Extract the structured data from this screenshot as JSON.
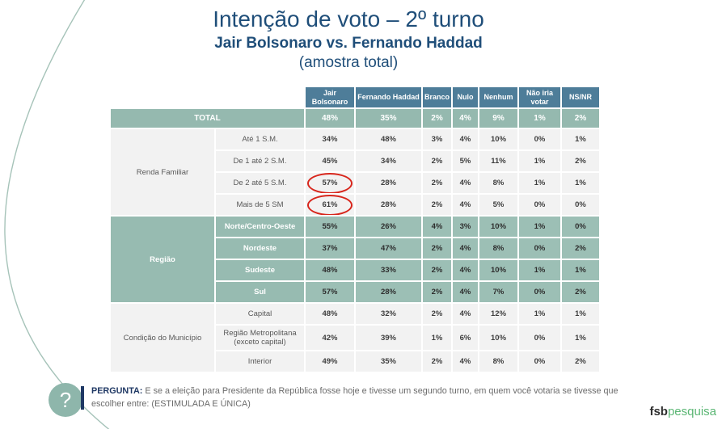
{
  "slide": {
    "title": "Intenção de voto – 2º turno",
    "subtitle": "Jair Bolsonaro vs. Fernando Haddad",
    "subtitle2": "(amostra total)",
    "question_mark": "?",
    "question_label": "PERGUNTA:",
    "question_text": " E se a eleição para Presidente da República fosse hoje e tivesse um segundo turno, em quem você votaria se tivesse que escolher entre: (ESTIMULADA E ÚNICA)",
    "logo_bold": "fsb",
    "logo_green": "pesquisa"
  },
  "colors": {
    "title_blue": "#1f4e79",
    "header_blue": "#4e7d99",
    "green_band": "#97bbb1",
    "green_cell": "#9cbfb5",
    "gray_cell": "#f2f2f2",
    "label_gray": "#595959",
    "question_navy": "#1f3864",
    "circle_red": "#d8261c",
    "logo_green": "#5bb674",
    "arc_green": "#a6c3b9"
  },
  "chart_data": {
    "type": "table",
    "title": "Intenção de voto – 2º turno | Jair Bolsonaro vs. Fernando Haddad (amostra total)",
    "columns": [
      "Jair Bolsonaro",
      "Fernando Haddad",
      "Branco",
      "Nulo",
      "Nenhum",
      "Não iria votar",
      "NS/NR"
    ],
    "total_row": {
      "label": "TOTAL",
      "values": [
        "48%",
        "35%",
        "2%",
        "4%",
        "9%",
        "1%",
        "2%"
      ]
    },
    "sections": [
      {
        "label": "Renda Familiar",
        "style": "gray",
        "rows": [
          {
            "label": "Até 1 S.M.",
            "values": [
              "34%",
              "48%",
              "3%",
              "4%",
              "10%",
              "0%",
              "1%"
            ]
          },
          {
            "label": "De 1 até 2 S.M.",
            "values": [
              "45%",
              "34%",
              "2%",
              "5%",
              "11%",
              "1%",
              "2%"
            ]
          },
          {
            "label": "De 2 até 5 S.M.",
            "values": [
              "57%",
              "28%",
              "2%",
              "4%",
              "8%",
              "1%",
              "1%"
            ],
            "circled": [
              0
            ]
          },
          {
            "label": "Mais de 5 SM",
            "values": [
              "61%",
              "28%",
              "2%",
              "4%",
              "5%",
              "0%",
              "0%"
            ],
            "circled": [
              0
            ]
          }
        ]
      },
      {
        "label": "Região",
        "style": "green",
        "rows": [
          {
            "label": "Norte/Centro-Oeste",
            "values": [
              "55%",
              "26%",
              "4%",
              "3%",
              "10%",
              "1%",
              "0%"
            ]
          },
          {
            "label": "Nordeste",
            "values": [
              "37%",
              "47%",
              "2%",
              "4%",
              "8%",
              "0%",
              "2%"
            ]
          },
          {
            "label": "Sudeste",
            "values": [
              "48%",
              "33%",
              "2%",
              "4%",
              "10%",
              "1%",
              "1%"
            ]
          },
          {
            "label": "Sul",
            "values": [
              "57%",
              "28%",
              "2%",
              "4%",
              "7%",
              "0%",
              "2%"
            ]
          }
        ]
      },
      {
        "label": "Condição do Município",
        "style": "gray",
        "rows": [
          {
            "label": "Capital",
            "values": [
              "48%",
              "32%",
              "2%",
              "4%",
              "12%",
              "1%",
              "1%"
            ]
          },
          {
            "label": "Região Metropolitana (exceto capital)",
            "values": [
              "42%",
              "39%",
              "1%",
              "6%",
              "10%",
              "0%",
              "1%"
            ],
            "tall": true
          },
          {
            "label": "Interior",
            "values": [
              "49%",
              "35%",
              "2%",
              "4%",
              "8%",
              "0%",
              "2%"
            ]
          }
        ]
      }
    ],
    "annotations": [
      "57% circled in red",
      "61% circled in red"
    ]
  }
}
